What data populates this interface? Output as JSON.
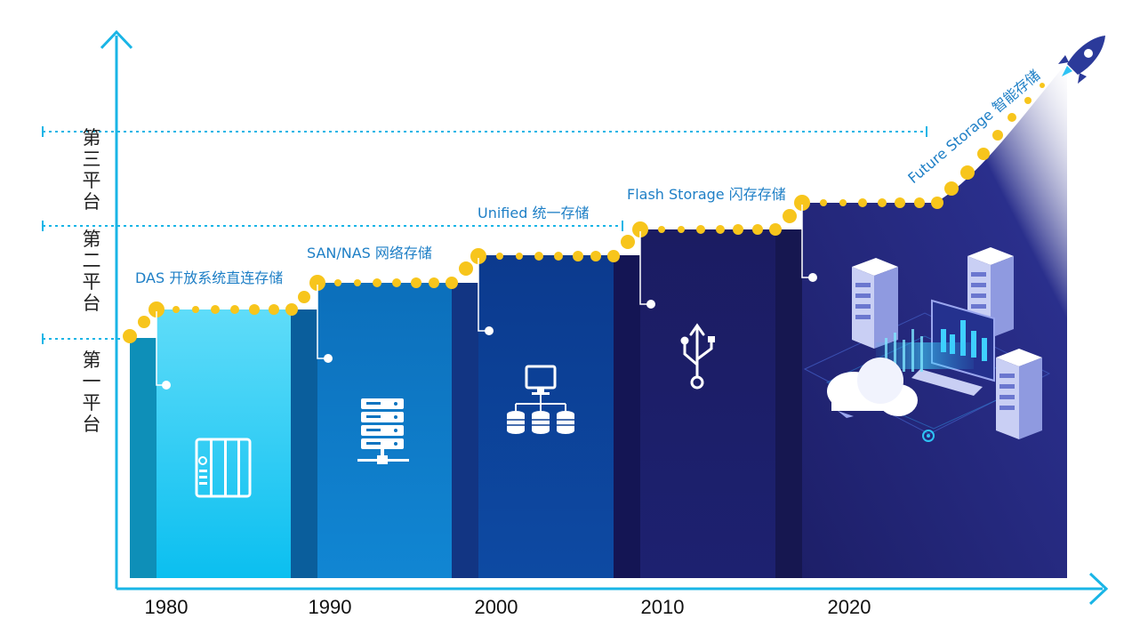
{
  "platforms": [
    {
      "label": "第三平台"
    },
    {
      "label": "第二平台"
    },
    {
      "label": "第一平台"
    }
  ],
  "eras": [
    {
      "year": "1980",
      "label": "DAS 开放系统直连存储",
      "icon": "nas-device-icon"
    },
    {
      "year": "1990",
      "label": "SAN/NAS 网络存储",
      "icon": "server-rack-icon"
    },
    {
      "year": "2000",
      "label": "Unified 统一存储",
      "icon": "unified-storage-icon"
    },
    {
      "year": "2010",
      "label": "Flash Storage 闪存存储",
      "icon": "usb-icon"
    },
    {
      "year": "2020",
      "label": "Future Storage 智能存储",
      "icon": "cloud-datacenter-icon"
    }
  ],
  "colors": {
    "axis": "#19b5e6",
    "label": "#1e7fc6",
    "dot": "#f7c51c",
    "step1": "#1ec8f2",
    "step2": "#0a74c0",
    "step3": "#0b3f93",
    "step4": "#1a1d68",
    "step5": "#22257a"
  }
}
